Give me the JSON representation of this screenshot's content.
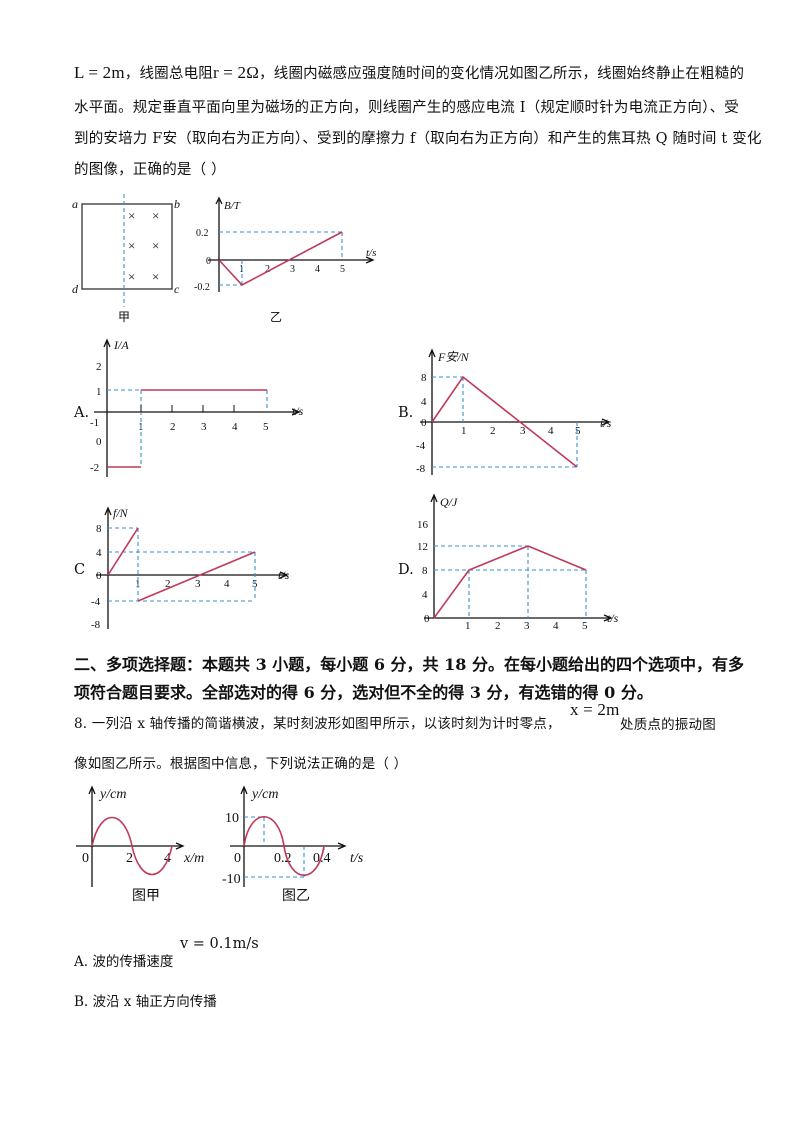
{
  "question7": {
    "line1_a": "L = 2m",
    "line1_b": "，线圈总电阻",
    "line1_c": "r = 2Ω",
    "line1_d": "，线圈内磁感应强度随时间的变化情况如图乙所示，线圈始终静止在粗糙的",
    "line2": "水平面。规定垂直平面向里为磁场的正方向，则线圈产生的感应电流 I（规定顺时针为电流正方向）、受",
    "line3": "到的安培力 F安（取向右为正方向）、受到的摩擦力 f（取向右为正方向）和产生的焦耳热 Q 随时间 t 变化",
    "line4": "的图像，正确的是（      ）",
    "fig_jia": {
      "corners": [
        "a",
        "b",
        "c",
        "d"
      ],
      "cross": "×",
      "caption": "甲"
    },
    "fig_yi": {
      "caption": "乙",
      "ylabel": "B/T",
      "xlabel": "t/s",
      "origin": "0",
      "yticks": [
        "0.2",
        "-0.2"
      ],
      "xticks": [
        "1",
        "2",
        "3",
        "4",
        "5"
      ]
    },
    "options": [
      {
        "letter": "A.",
        "ylabel": "I/A",
        "xlabel": "t/s",
        "origin": "0",
        "yticks": [
          "2",
          "1",
          "-1",
          "-2"
        ],
        "xticks": [
          "1",
          "2",
          "3",
          "4",
          "5"
        ]
      },
      {
        "letter": "B.",
        "ylabel": "F安/N",
        "xlabel": "t/s",
        "origin": "0",
        "yticks": [
          "8",
          "4",
          "-4",
          "-8"
        ],
        "xticks": [
          "1",
          "2",
          "3",
          "4",
          "5"
        ]
      },
      {
        "letter": "C",
        "ylabel": "f/N",
        "xlabel": "t/s",
        "origin": "0",
        "yticks": [
          "8",
          "4",
          "-4",
          "-8"
        ],
        "xticks": [
          "1",
          "2",
          "3",
          "4",
          "5"
        ]
      },
      {
        "letter": "D.",
        "ylabel": "Q/J",
        "xlabel": "t/s",
        "origin": "0",
        "yticks": [
          "16",
          "12",
          "8",
          "4"
        ],
        "xticks": [
          "1",
          "2",
          "3",
          "4",
          "5"
        ]
      }
    ]
  },
  "section2": {
    "heading1": "二、多项选择题：本题共 3 小题，每小题 6 分，共 18 分。在每小题给出的四个选项中，有多",
    "heading2": "项符合题目要求。全部选对的得 6 分，选对但不全的得 3 分，有选错的得 0 分。"
  },
  "question8": {
    "line1_a": "8. 一列沿 x 轴传播的简谐横波，某时刻波形如图甲所示，以该时刻为计时零点，",
    "line1_math": "x = 2m",
    "line1_b": "处质点的振动图",
    "line2": "像如图乙所示。根据图中信息，下列说法正确的是（      ）",
    "fig_jia": {
      "ylabel": "y/cm",
      "xlabel": "x/m",
      "origin": "0",
      "xticks": [
        "2",
        "4"
      ],
      "caption": "图甲"
    },
    "fig_yi": {
      "ylabel": "y/cm",
      "xlabel": "t/s",
      "origin": "0",
      "yticks": [
        "10",
        "-10"
      ],
      "xticks": [
        "0.2",
        "0.4"
      ],
      "caption": "图乙"
    },
    "optA_text": "A. 波的传播速度",
    "optA_math": "v = 0.1m/s",
    "optB_text": "B. 波沿 x 轴正方向传播"
  }
}
